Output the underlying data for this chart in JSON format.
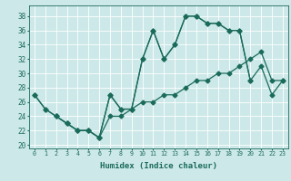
{
  "xlabel": "Humidex (Indice chaleur)",
  "background_color": "#cce8e8",
  "grid_color": "#ffffff",
  "line_color": "#1a6b5a",
  "xlim": [
    -0.5,
    23.5
  ],
  "ylim": [
    19.5,
    39.5
  ],
  "xticks": [
    0,
    1,
    2,
    3,
    4,
    5,
    6,
    7,
    8,
    9,
    10,
    11,
    12,
    13,
    14,
    15,
    16,
    17,
    18,
    19,
    20,
    21,
    22,
    23
  ],
  "yticks": [
    20,
    22,
    24,
    26,
    28,
    30,
    32,
    34,
    36,
    38
  ],
  "curve1": {
    "x": [
      0,
      1,
      2,
      3,
      4,
      5,
      6,
      7,
      8,
      9,
      10,
      11,
      12,
      13,
      14,
      15,
      16,
      17,
      18,
      19,
      20,
      21,
      22,
      23
    ],
    "y": [
      27,
      25,
      24,
      23,
      22,
      22,
      21,
      27,
      25,
      25,
      32,
      36,
      32,
      34,
      38,
      38,
      37,
      37,
      36,
      36,
      29,
      31,
      27,
      29
    ]
  },
  "curve2": {
    "x": [
      0,
      1,
      2,
      3,
      4,
      5,
      6,
      7,
      8,
      9,
      10,
      11,
      12,
      13,
      14,
      15,
      16,
      17,
      18,
      19,
      20
    ],
    "y": [
      27,
      25,
      24,
      23,
      22,
      22,
      21,
      27,
      25,
      25,
      32,
      36,
      32,
      34,
      38,
      38,
      37,
      37,
      36,
      36,
      29
    ]
  },
  "curve3": {
    "x": [
      2,
      3,
      4,
      5,
      6,
      7,
      8,
      9,
      10,
      11,
      12,
      13,
      14,
      15,
      16,
      17,
      18,
      19,
      20,
      21,
      22,
      23
    ],
    "y": [
      24,
      23,
      22,
      22,
      21,
      24,
      24,
      25,
      26,
      26,
      27,
      27,
      28,
      29,
      29,
      30,
      30,
      31,
      32,
      33,
      29,
      29
    ]
  }
}
